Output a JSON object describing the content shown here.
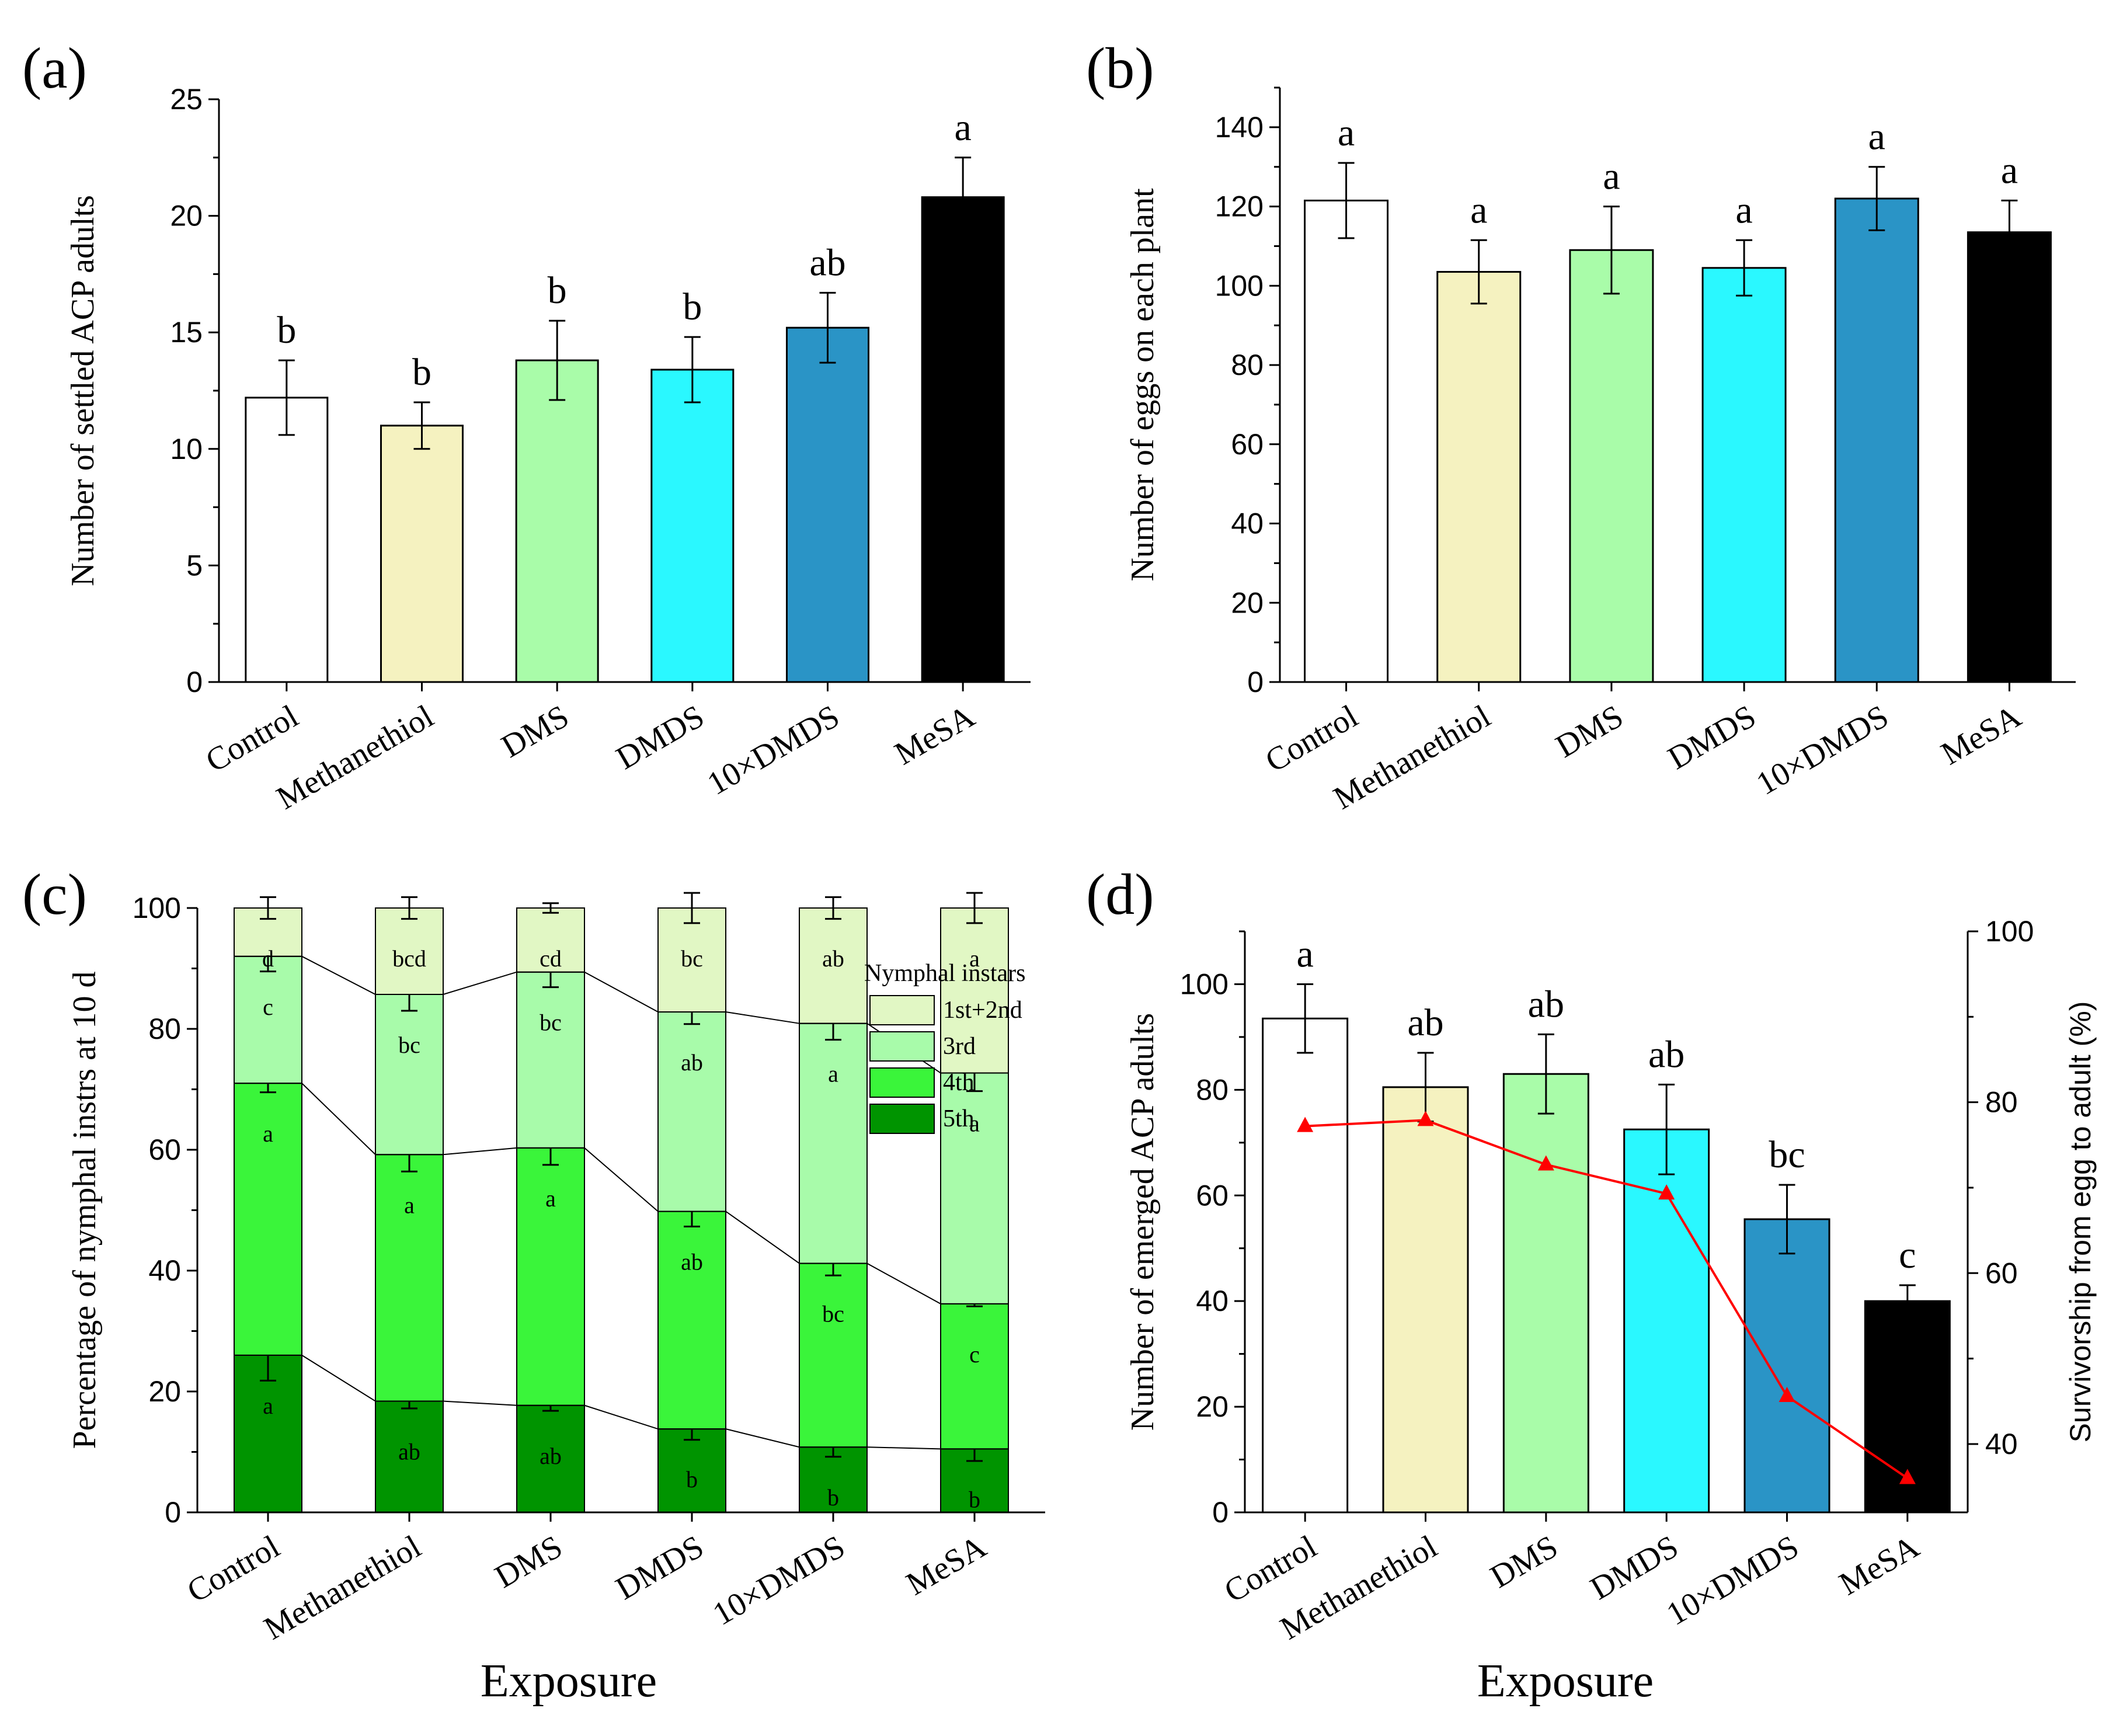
{
  "figure": {
    "shared_xlabel_c": "Exposure",
    "shared_xlabel_d": "Exposure"
  },
  "colors": {
    "Control": "#ffffff",
    "Methanethiol": "#f5f2c0",
    "DMS": "#a9fca9",
    "DMDS": "#2af8ff",
    "10×DMDS": "#2a94c6",
    "MeSA": "#000000",
    "instar_1st2nd": "#e1f7c4",
    "instar_3rd": "#a8fbaa",
    "instar_4th": "#3af53a",
    "instar_5th": "#009400",
    "survivorship": "#ff0000"
  },
  "chart_data": [
    {
      "panel": "(a)",
      "type": "bar",
      "categories": [
        "Control",
        "Methanethiol",
        "DMS",
        "DMDS",
        "10×DMDS",
        "MeSA"
      ],
      "values": [
        12.2,
        11.0,
        13.8,
        13.4,
        15.2,
        20.8
      ],
      "errors": [
        1.6,
        1.0,
        1.7,
        1.4,
        1.5,
        1.7
      ],
      "letters": [
        "b",
        "b",
        "b",
        "b",
        "ab",
        "a"
      ],
      "ylabel": "Number of settled ACP adults",
      "xlabel": "",
      "ylim": [
        0,
        25
      ],
      "yticks": [
        0,
        5,
        10,
        15,
        20,
        25
      ]
    },
    {
      "panel": "(b)",
      "type": "bar",
      "categories": [
        "Control",
        "Methanethiol",
        "DMS",
        "DMDS",
        "10×DMDS",
        "MeSA"
      ],
      "values": [
        121.5,
        103.5,
        109.0,
        104.5,
        122.0,
        113.5
      ],
      "errors": [
        9.5,
        8.0,
        11.0,
        7.0,
        8.0,
        8.0
      ],
      "letters": [
        "a",
        "a",
        "a",
        "a",
        "a",
        "a"
      ],
      "ylabel": "Number of eggs on each plant",
      "xlabel": "",
      "ylim": [
        0,
        150
      ],
      "yticks": [
        0,
        20,
        40,
        60,
        80,
        100,
        120,
        140
      ]
    },
    {
      "panel": "(c)",
      "type": "bar",
      "stacked": true,
      "categories": [
        "Control",
        "Methanethiol",
        "DMS",
        "DMDS",
        "10×DMDS",
        "MeSA"
      ],
      "series": [
        {
          "name": "5th",
          "values": [
            26,
            18.4,
            17.7,
            13.8,
            10.8,
            10.5
          ],
          "errors": [
            4.2,
            1.2,
            0.9,
            1.8,
            1.6,
            2.0
          ],
          "letters": [
            "a",
            "ab",
            "ab",
            "b",
            "b",
            "b"
          ]
        },
        {
          "name": "4th",
          "values": [
            45,
            40.8,
            42.6,
            36,
            30.4,
            24
          ],
          "errors": [
            1.5,
            2.8,
            2.8,
            2.5,
            2.0,
            0.4
          ],
          "letters": [
            "a",
            "a",
            "a",
            "ab",
            "bc",
            "c"
          ]
        },
        {
          "name": "3rd",
          "values": [
            21,
            26.5,
            29.1,
            33,
            39.7,
            38.2
          ],
          "errors": [
            2.5,
            2.7,
            2.5,
            2.0,
            2.7,
            3.0
          ],
          "letters": [
            "c",
            "bc",
            "bc",
            "ab",
            "a",
            "a"
          ]
        },
        {
          "name": "1st+2nd",
          "values": [
            8,
            14.3,
            10.6,
            17.2,
            19.1,
            27.3
          ],
          "errors": [
            1.8,
            1.8,
            0.8,
            2.5,
            1.8,
            2.5
          ],
          "letters": [
            "d",
            "bcd",
            "cd",
            "bc",
            "ab",
            "a"
          ]
        }
      ],
      "legend_title": "Nymphal instars",
      "legend_order": [
        "1st+2nd",
        "3rd",
        "4th",
        "5th"
      ],
      "legend_position": "top-right",
      "ylabel": "Percentage of nymphal instrs at 10 d",
      "xlabel": "Exposure",
      "ylim": [
        0,
        100
      ],
      "yticks": [
        0,
        20,
        40,
        60,
        80,
        100
      ]
    },
    {
      "panel": "(d)",
      "type": "bar",
      "categories": [
        "Control",
        "Methanethiol",
        "DMS",
        "DMDS",
        "10×DMDS",
        "MeSA"
      ],
      "values": [
        93.5,
        80.5,
        83.0,
        72.5,
        55.5,
        40.0
      ],
      "errors": [
        6.5,
        6.5,
        7.5,
        8.5,
        6.5,
        3.0
      ],
      "letters": [
        "a",
        "ab",
        "ab",
        "ab",
        "bc",
        "c"
      ],
      "ylabel": "Number of emerged ACP adults",
      "xlabel": "Exposure",
      "ylim": [
        0,
        110
      ],
      "yticks": [
        0,
        20,
        40,
        60,
        80,
        100
      ],
      "line": {
        "name": "Survivorship from egg to adult (%)",
        "type": "line",
        "values": [
          77.2,
          77.9,
          72.7,
          69.3,
          45.6,
          36.0
        ],
        "ylabel": "Survivorship from egg to adult (%)",
        "ylim": [
          32,
          100
        ],
        "yticks": [
          40,
          60,
          80,
          100
        ]
      }
    }
  ]
}
